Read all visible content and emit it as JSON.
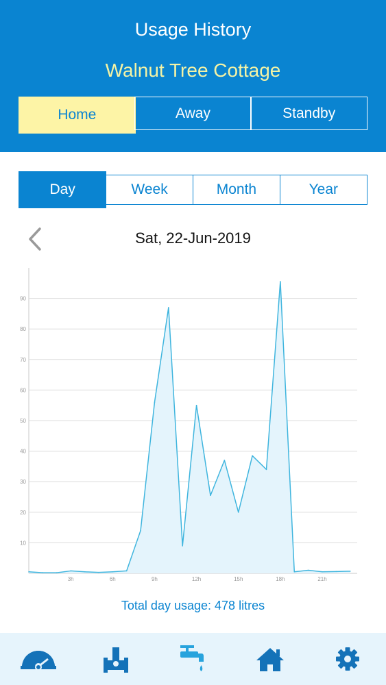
{
  "header": {
    "title": "Usage History",
    "property": "Walnut Tree Cottage"
  },
  "mode_tabs": [
    {
      "label": "Home",
      "active": true
    },
    {
      "label": "Away",
      "active": false
    },
    {
      "label": "Standby",
      "active": false
    }
  ],
  "range_tabs": [
    {
      "label": "Day",
      "active": true
    },
    {
      "label": "Week",
      "active": false
    },
    {
      "label": "Month",
      "active": false
    },
    {
      "label": "Year",
      "active": false
    }
  ],
  "date_label": "Sat, 22-Jun-2019",
  "summary": {
    "label": "Total day usage:",
    "value": "478",
    "unit": "litres"
  },
  "colors": {
    "primary": "#0a84d1",
    "accent_yellow": "#fdf4a6",
    "line": "#3fb5de",
    "fill": "#e4f4fc",
    "tabbar_bg": "#e6f4fc"
  },
  "tabbar": [
    {
      "icon": "gauge-icon",
      "active": false
    },
    {
      "icon": "valve-icon",
      "active": false
    },
    {
      "icon": "tap-icon",
      "active": true
    },
    {
      "icon": "home-icon",
      "active": false
    },
    {
      "icon": "gear-icon",
      "active": false
    }
  ],
  "chart_data": {
    "type": "area",
    "title": "",
    "xlabel": "",
    "ylabel": "",
    "x": [
      0,
      1,
      2,
      3,
      4,
      5,
      6,
      7,
      8,
      9,
      10,
      11,
      12,
      13,
      14,
      15,
      16,
      17,
      18,
      19,
      20,
      21,
      22,
      23
    ],
    "values": [
      0.5,
      0.2,
      0.2,
      0.8,
      0.5,
      0.3,
      0.5,
      0.8,
      14,
      56,
      87,
      9,
      55,
      25.5,
      37,
      20,
      38.5,
      34,
      95.5,
      0.5,
      1,
      0.5,
      0.6,
      0.7
    ],
    "x_ticks": [
      {
        "value": 3,
        "label": "3h"
      },
      {
        "value": 6,
        "label": "6h"
      },
      {
        "value": 9,
        "label": "9h"
      },
      {
        "value": 12,
        "label": "12h"
      },
      {
        "value": 15,
        "label": "15h"
      },
      {
        "value": 18,
        "label": "18h"
      },
      {
        "value": 21,
        "label": "21h"
      }
    ],
    "y_ticks": [
      10,
      20,
      30,
      40,
      50,
      60,
      70,
      80,
      90
    ],
    "xlim": [
      0,
      23.5
    ],
    "ylim": [
      0,
      100
    ],
    "grid": true,
    "legend": "none"
  }
}
